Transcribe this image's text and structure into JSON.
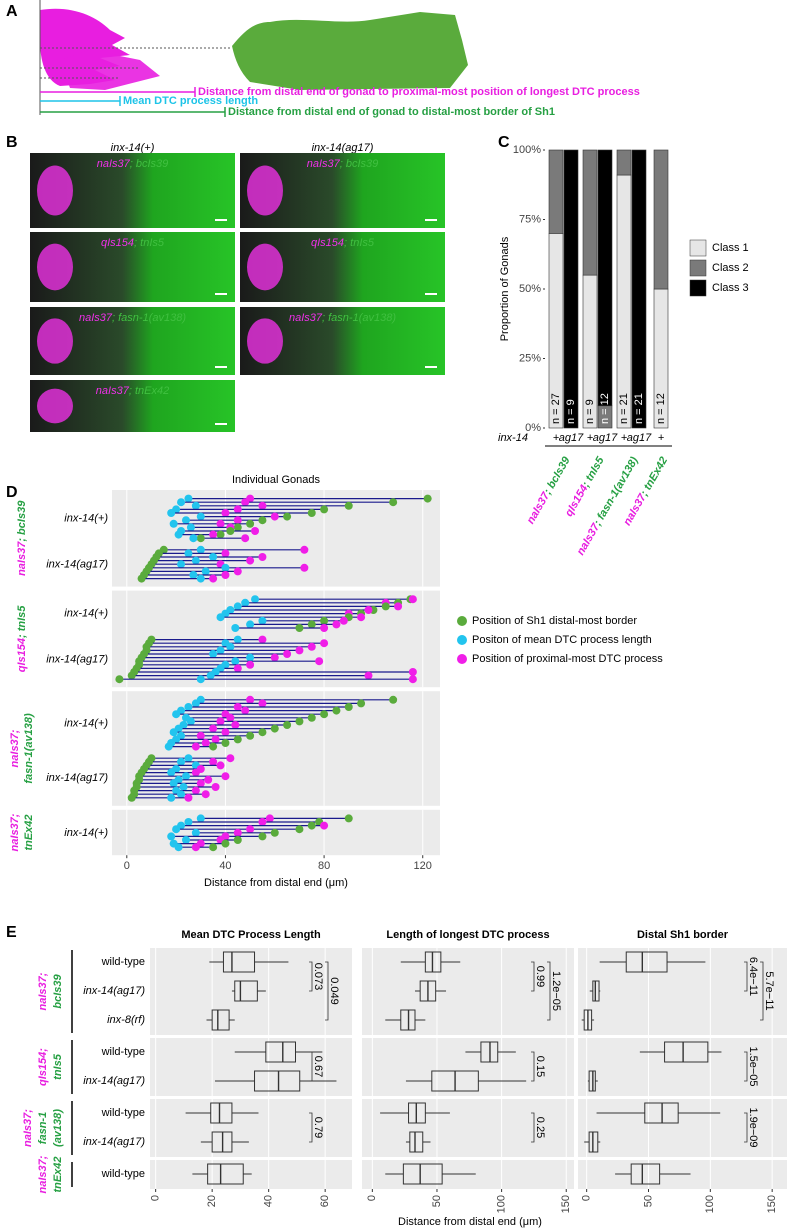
{
  "panel_labels": {
    "a": "A",
    "b": "B",
    "c": "C",
    "d": "D",
    "e": "E"
  },
  "panel_a": {
    "measures": [
      {
        "label": "Distance from distal end of gonad to proximal-most position of longest DTC process",
        "color": "#e81ee0"
      },
      {
        "label": "Mean DTC process length",
        "color": "#1ec4e8"
      },
      {
        "label": "Distance from distal end of gonad to distal-most border of Sh1",
        "color": "#26a043"
      }
    ]
  },
  "panel_b": {
    "columns": [
      "inx-14(+)",
      "inx-14(ag17)"
    ],
    "rows": [
      [
        [
          {
            "text": "naIs37",
            "color": "#f030ea"
          },
          {
            "text": "; bcIs39",
            "color": "#40c040"
          }
        ],
        [
          {
            "text": "naIs37",
            "color": "#f030ea"
          },
          {
            "text": "; bcIs39",
            "color": "#40c040"
          }
        ]
      ],
      [
        [
          {
            "text": "qIs154",
            "color": "#f030ea"
          },
          {
            "text": "; tnIs5",
            "color": "#40c040"
          }
        ],
        [
          {
            "text": "qIs154",
            "color": "#f030ea"
          },
          {
            "text": "; tnIs5",
            "color": "#40c040"
          }
        ]
      ],
      [
        [
          {
            "text": "naIs37",
            "color": "#f030ea"
          },
          {
            "text": "; fasn-1(av138)",
            "color": "#40c040"
          }
        ],
        [
          {
            "text": "naIs37",
            "color": "#f030ea"
          },
          {
            "text": "; fasn-1(av138)",
            "color": "#40c040"
          }
        ]
      ],
      [
        [
          {
            "text": "naIs37",
            "color": "#f030ea"
          },
          {
            "text": "; tnEx42",
            "color": "#40c040"
          }
        ]
      ]
    ]
  },
  "chart_data": [
    {
      "type": "stacked_bar",
      "ylabel": "Proportion of Gonads",
      "ylim": [
        0,
        100
      ],
      "yticks": [
        {
          "value": 0,
          "label": "0%"
        },
        {
          "value": 25,
          "label": "25%"
        },
        {
          "value": 50,
          "label": "50%"
        },
        {
          "value": 75,
          "label": "75%"
        },
        {
          "value": 100,
          "label": "100%"
        }
      ],
      "categories": [
        "+",
        "ag17",
        "+",
        "ag17",
        "+",
        "ag17",
        "+"
      ],
      "series": [
        {
          "name": "Class 1",
          "color": "#e6e6e6",
          "values": [
            70,
            0,
            55,
            0,
            91,
            0,
            50
          ]
        },
        {
          "name": "Class 2",
          "color": "#7a7a7a",
          "values": [
            30,
            0,
            45,
            8,
            9,
            0,
            50
          ]
        },
        {
          "name": "Class 3",
          "color": "#000000",
          "values": [
            0,
            100,
            0,
            92,
            0,
            100,
            0
          ]
        }
      ],
      "n_labels": [
        "n = 27",
        "n = 9",
        "n = 9",
        "n = 12",
        "n = 21",
        "n = 21",
        "n = 12"
      ],
      "factor_label": "inx-14",
      "groups": [
        [
          {
            "text": "naIs37",
            "color": "#e81ee0"
          },
          {
            "text": "; bcIs39",
            "color": "#26a043"
          }
        ],
        [
          {
            "text": "qIs154",
            "color": "#e81ee0"
          },
          {
            "text": "; tnIs5",
            "color": "#26a043"
          }
        ],
        [
          {
            "text": "naIs37",
            "color": "#e81ee0"
          },
          {
            "text": "; fasn-1(av138)",
            "color": "#26a043"
          }
        ],
        [
          {
            "text": "naIs37",
            "color": "#e81ee0"
          },
          {
            "text": "; tnEx42",
            "color": "#26a043"
          }
        ]
      ]
    },
    {
      "type": "dumbbell",
      "title": "Individual Gonads",
      "xlabel": "Distance from distal end (μm)",
      "xlim": [
        -6,
        127
      ],
      "xticks": [
        0,
        40,
        80,
        120
      ],
      "grid": true,
      "line_color": "#1a1a8c",
      "series": [
        {
          "name": "Position of Sh1 distal-most border",
          "color": "#5aab3c"
        },
        {
          "name": "Positon of mean DTC process length",
          "color": "#22c4ee"
        },
        {
          "name": "Position of proximal-most DTC process",
          "color": "#f01ee8"
        }
      ],
      "facets": [
        {
          "strip": [
            [
              {
                "text": "naIs37",
                "color": "#e81ee0"
              },
              {
                "text": "; bcIs39",
                "color": "#26a043"
              }
            ]
          ],
          "groups": [
            {
              "label": "inx-14(+)",
              "sh1": [
                122,
                108,
                90,
                80,
                75,
                65,
                55,
                50,
                45,
                42,
                38,
                30
              ],
              "mean": [
                25,
                22,
                28,
                20,
                18,
                30,
                24,
                19,
                26,
                22,
                21,
                27
              ],
              "longest": [
                50,
                48,
                55,
                45,
                40,
                60,
                45,
                38,
                42,
                52,
                35,
                48
              ]
            },
            {
              "label": "inx-14(ag17)",
              "sh1": [
                15,
                13,
                12,
                11,
                10,
                9,
                8,
                7,
                6
              ],
              "mean": [
                30,
                25,
                35,
                28,
                22,
                40,
                32,
                27,
                30
              ],
              "longest": [
                72,
                40,
                55,
                50,
                38,
                72,
                45,
                40,
                35
              ]
            }
          ]
        },
        {
          "strip": [
            [
              {
                "text": "qIs154",
                "color": "#e81ee0"
              },
              {
                "text": "; tnIs5",
                "color": "#26a043"
              }
            ]
          ],
          "groups": [
            {
              "label": "inx-14(+)",
              "sh1": [
                115,
                110,
                105,
                100,
                95,
                90,
                80,
                75,
                70
              ],
              "mean": [
                52,
                48,
                45,
                42,
                40,
                38,
                55,
                50,
                44
              ],
              "longest": [
                116,
                105,
                110,
                98,
                90,
                95,
                88,
                85,
                80
              ]
            },
            {
              "label": "inx-14(ag17)",
              "sh1": [
                10,
                9,
                8,
                8,
                7,
                6,
                5,
                5,
                4,
                3,
                2,
                -3
              ],
              "mean": [
                45,
                40,
                42,
                38,
                35,
                50,
                44,
                40,
                38,
                36,
                34,
                30
              ],
              "longest": [
                55,
                80,
                75,
                70,
                65,
                60,
                78,
                50,
                45,
                116,
                98,
                116
              ]
            }
          ]
        },
        {
          "strip": [
            [
              {
                "text": "naIs37;",
                "color": "#e81ee0"
              }
            ],
            [
              {
                "text": "fasn-1(av138)",
                "color": "#26a043"
              }
            ]
          ],
          "groups": [
            {
              "label": "inx-14(+)",
              "sh1": [
                108,
                95,
                90,
                85,
                80,
                75,
                70,
                65,
                60,
                55,
                50,
                45,
                40,
                35
              ],
              "mean": [
                30,
                28,
                25,
                22,
                20,
                24,
                26,
                23,
                21,
                19,
                22,
                20,
                18,
                17
              ],
              "longest": [
                50,
                55,
                45,
                48,
                40,
                42,
                38,
                44,
                35,
                40,
                30,
                36,
                32,
                28
              ]
            },
            {
              "label": "inx-14(ag17)",
              "sh1": [
                10,
                9,
                8,
                7,
                6,
                5,
                5,
                4,
                4,
                3,
                3,
                2
              ],
              "mean": [
                25,
                22,
                28,
                20,
                18,
                24,
                21,
                19,
                23,
                20,
                22,
                18
              ],
              "longest": [
                42,
                35,
                38,
                30,
                28,
                40,
                33,
                30,
                36,
                28,
                32,
                25
              ]
            }
          ]
        },
        {
          "strip": [
            [
              {
                "text": "naIs37;",
                "color": "#e81ee0"
              }
            ],
            [
              {
                "text": "tnEx42",
                "color": "#26a043"
              }
            ]
          ],
          "groups": [
            {
              "label": "inx-14(+)",
              "sh1": [
                90,
                78,
                75,
                70,
                60,
                55,
                45,
                40,
                35
              ],
              "mean": [
                30,
                25,
                22,
                20,
                28,
                18,
                24,
                19,
                21
              ],
              "longest": [
                58,
                55,
                80,
                50,
                45,
                40,
                38,
                30,
                28
              ]
            }
          ]
        }
      ]
    },
    {
      "type": "box",
      "title": "Mean DTC Process Length",
      "xlim": [
        -2,
        69.5
      ],
      "xticks": [
        0,
        20,
        40,
        60
      ],
      "boxes": [
        [
          [
            19,
            24,
            27,
            35,
            47
          ],
          [
            27,
            28,
            30,
            36,
            39
          ],
          [
            18,
            20,
            22,
            26,
            28
          ]
        ],
        [
          [
            28,
            39,
            45,
            49.5,
            59
          ],
          [
            21,
            35,
            43.5,
            51,
            64
          ]
        ],
        [
          [
            10.6,
            19.5,
            22.6,
            27,
            36.4
          ],
          [
            16,
            20,
            23.7,
            27,
            33
          ]
        ],
        [
          [
            13,
            18.4,
            23,
            31,
            34
          ]
        ]
      ],
      "pvalues": [
        [
          "0.073",
          "0.049"
        ],
        [
          "0.67"
        ],
        [
          "0.79"
        ],
        []
      ]
    },
    {
      "type": "box",
      "title": "Length of longest DTC process",
      "xlim": [
        -8,
        156
      ],
      "xticks": [
        0,
        50,
        100,
        150
      ],
      "boxes": [
        [
          [
            22,
            41,
            46.5,
            53,
            68
          ],
          [
            33,
            37,
            43,
            49,
            57
          ],
          [
            10,
            22,
            28,
            33,
            41
          ]
        ],
        [
          [
            72,
            84,
            91,
            97,
            111
          ],
          [
            26,
            46,
            64,
            82,
            119
          ]
        ],
        [
          [
            6,
            28,
            34,
            41,
            60
          ],
          [
            26,
            29,
            33,
            39,
            45
          ]
        ],
        [
          [
            10,
            24,
            37,
            54,
            80
          ]
        ]
      ],
      "pvalues": [
        [
          "0.99",
          "1.2e−05"
        ],
        [
          "0.15"
        ],
        [
          "0.25"
        ],
        []
      ]
    },
    {
      "type": "box",
      "title": "Distal Sh1 border",
      "xlim": [
        -7,
        162
      ],
      "xticks": [
        0,
        50,
        100,
        150
      ],
      "boxes": [
        [
          [
            10.5,
            32,
            45,
            65,
            96
          ],
          [
            2.5,
            5,
            7,
            10,
            11
          ],
          [
            -4,
            -2,
            1,
            4,
            6
          ]
        ],
        [
          [
            43,
            63,
            78,
            98,
            109
          ],
          [
            1,
            2,
            5,
            7,
            9
          ]
        ],
        [
          [
            8,
            47,
            61,
            74,
            108
          ],
          [
            -2,
            2,
            5,
            9,
            11
          ]
        ],
        [
          [
            23,
            36,
            45,
            59,
            84
          ]
        ]
      ],
      "pvalues": [
        [
          "6.4e−11",
          "5.7e−11"
        ],
        [
          "1.5e−05"
        ],
        [
          "1.9e−09"
        ],
        []
      ]
    }
  ],
  "panel_e": {
    "xlabel": "Distance from distal end (μm)",
    "facets": [
      {
        "strip": [
          [
            {
              "text": "naIs37;",
              "color": "#e81ee0"
            }
          ],
          [
            {
              "text": "bcIs39",
              "color": "#26a043"
            }
          ]
        ],
        "rows": [
          "wild-type",
          "inx-14(ag17)",
          "inx-8(rf)"
        ]
      },
      {
        "strip": [
          [
            {
              "text": "qIs154;",
              "color": "#e81ee0"
            }
          ],
          [
            {
              "text": "tnIs5",
              "color": "#26a043"
            }
          ]
        ],
        "rows": [
          "wild-type",
          "inx-14(ag17)"
        ]
      },
      {
        "strip": [
          [
            {
              "text": "naIs37;",
              "color": "#e81ee0"
            }
          ],
          [
            {
              "text": "fasn-1",
              "color": "#26a043"
            }
          ],
          [
            {
              "text": "(av138)",
              "color": "#26a043"
            }
          ]
        ],
        "rows": [
          "wild-type",
          "inx-14(ag17)"
        ]
      },
      {
        "strip": [
          [
            {
              "text": "naIs37;",
              "color": "#e81ee0"
            }
          ],
          [
            {
              "text": "tnEx42",
              "color": "#26a043"
            }
          ]
        ],
        "rows": [
          "wild-type"
        ]
      }
    ]
  }
}
